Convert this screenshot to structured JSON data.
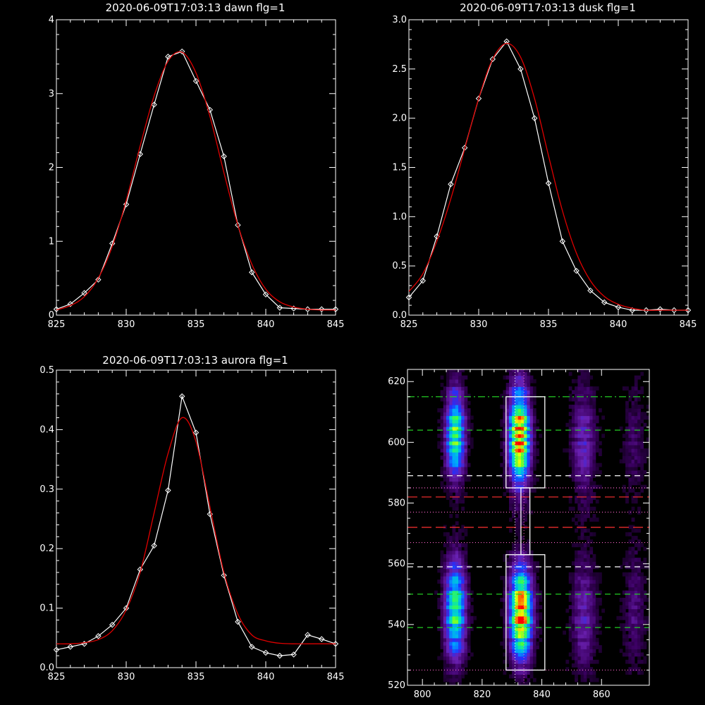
{
  "chart_data": [
    {
      "id": "dawn",
      "type": "line",
      "title": "2020-06-09T17:03:13 dawn flg=1",
      "xlim": [
        825,
        845
      ],
      "ylim": [
        0,
        4
      ],
      "xticks": [
        825,
        830,
        835,
        840,
        845
      ],
      "yticks": [
        0,
        1,
        2,
        3,
        4
      ],
      "series": [
        {
          "x": [
            825,
            826,
            827,
            828,
            829,
            830,
            831,
            832,
            833,
            834,
            835,
            836,
            837,
            838,
            839,
            840,
            841,
            842,
            843,
            844,
            845
          ],
          "y": [
            0.08,
            0.15,
            0.3,
            0.48,
            0.97,
            1.5,
            2.18,
            2.85,
            3.5,
            3.57,
            3.17,
            2.78,
            2.15,
            1.22,
            0.58,
            0.28,
            0.1,
            0.09,
            0.08,
            0.08,
            0.08
          ],
          "color": "#ffffff",
          "markers": true
        },
        {
          "x": [
            825,
            826,
            827,
            828,
            829,
            830,
            831,
            832,
            833,
            834,
            835,
            836,
            837,
            838,
            839,
            840,
            841,
            842,
            843,
            844,
            845
          ],
          "y": [
            0.07,
            0.13,
            0.25,
            0.5,
            0.93,
            1.55,
            2.29,
            2.97,
            3.44,
            3.56,
            3.28,
            2.69,
            1.93,
            1.22,
            0.69,
            0.35,
            0.18,
            0.11,
            0.08,
            0.07,
            0.07
          ],
          "color": "#e00000",
          "markers": false
        }
      ]
    },
    {
      "id": "dusk",
      "type": "line",
      "title": "2020-06-09T17:03:13 dusk flg=1",
      "xlim": [
        825,
        845
      ],
      "ylim": [
        0,
        3
      ],
      "xticks": [
        825,
        830,
        835,
        840,
        845
      ],
      "yticks": [
        0,
        0.5,
        1,
        1.5,
        2,
        2.5,
        3
      ],
      "ytick_labels": [
        "0.0",
        "0.5",
        "1.0",
        "1.5",
        "2.0",
        "2.5",
        "3.0"
      ],
      "series": [
        {
          "x": [
            825,
            826,
            827,
            828,
            829,
            830,
            831,
            832,
            833,
            834,
            835,
            836,
            837,
            838,
            839,
            840,
            841,
            842,
            843,
            844,
            845
          ],
          "y": [
            0.18,
            0.35,
            0.8,
            1.33,
            1.7,
            2.2,
            2.6,
            2.78,
            2.5,
            2.0,
            1.34,
            0.75,
            0.45,
            0.25,
            0.13,
            0.08,
            0.05,
            0.05,
            0.06,
            0.05,
            0.05
          ],
          "color": "#ffffff",
          "markers": true
        },
        {
          "x": [
            825,
            826,
            827,
            828,
            829,
            830,
            831,
            832,
            833,
            834,
            835,
            836,
            837,
            838,
            839,
            840,
            841,
            842,
            843,
            844,
            845
          ],
          "y": [
            0.24,
            0.42,
            0.75,
            1.18,
            1.69,
            2.2,
            2.6,
            2.76,
            2.62,
            2.2,
            1.62,
            1.06,
            0.63,
            0.35,
            0.19,
            0.11,
            0.07,
            0.05,
            0.05,
            0.05,
            0.05
          ],
          "color": "#e00000",
          "markers": false
        }
      ]
    },
    {
      "id": "aurora",
      "type": "line",
      "title": "2020-06-09T17:03:13 aurora flg=1",
      "xlim": [
        825,
        845
      ],
      "ylim": [
        0,
        0.5
      ],
      "xticks": [
        825,
        830,
        835,
        840,
        845
      ],
      "yticks": [
        0,
        0.1,
        0.2,
        0.3,
        0.4,
        0.5
      ],
      "ytick_labels": [
        "0.0",
        "0.1",
        "0.2",
        "0.3",
        "0.4",
        "0.5"
      ],
      "series": [
        {
          "x": [
            825,
            826,
            827,
            828,
            829,
            830,
            831,
            832,
            833,
            834,
            835,
            836,
            837,
            838,
            839,
            840,
            841,
            842,
            843,
            844,
            845
          ],
          "y": [
            0.03,
            0.035,
            0.04,
            0.053,
            0.072,
            0.1,
            0.165,
            0.205,
            0.298,
            0.456,
            0.395,
            0.258,
            0.155,
            0.077,
            0.035,
            0.025,
            0.02,
            0.022,
            0.055,
            0.048,
            0.04
          ],
          "color": "#ffffff",
          "markers": true
        },
        {
          "x": [
            825,
            826,
            827,
            828,
            829,
            830,
            831,
            832,
            833,
            834,
            835,
            836,
            837,
            838,
            839,
            840,
            841,
            842,
            843,
            844,
            845
          ],
          "y": [
            0.04,
            0.04,
            0.042,
            0.047,
            0.062,
            0.097,
            0.16,
            0.26,
            0.36,
            0.42,
            0.38,
            0.27,
            0.16,
            0.09,
            0.055,
            0.045,
            0.041,
            0.04,
            0.04,
            0.04,
            0.04
          ],
          "color": "#e00000",
          "markers": false
        }
      ]
    },
    {
      "id": "image",
      "type": "heatmap",
      "xlim": [
        795,
        876
      ],
      "ylim": [
        520,
        624
      ],
      "xticks": [
        800,
        820,
        840,
        860
      ],
      "yticks": [
        520,
        540,
        560,
        580,
        600,
        620
      ],
      "colormap": [
        "#000000",
        "#3a0060",
        "#6a20b0",
        "#2030ff",
        "#00a0ff",
        "#00e0c0",
        "#40ff40",
        "#f0ff00",
        "#ff8000",
        "#ff0000"
      ],
      "blobs": [
        {
          "x": 811,
          "y": 603,
          "sx": 2.2,
          "sy": 9,
          "amp": 0.62
        },
        {
          "x": 811,
          "y": 545,
          "sx": 2.4,
          "sy": 10,
          "amp": 0.6
        },
        {
          "x": 832.5,
          "y": 602,
          "sx": 2.4,
          "sy": 10,
          "amp": 0.88
        },
        {
          "x": 833,
          "y": 544,
          "sx": 2.5,
          "sy": 9,
          "amp": 0.92
        },
        {
          "x": 854,
          "y": 600,
          "sx": 2.8,
          "sy": 12,
          "amp": 0.22
        },
        {
          "x": 854,
          "y": 543,
          "sx": 2.8,
          "sy": 12,
          "amp": 0.2
        },
        {
          "x": 871,
          "y": 545,
          "sx": 2.5,
          "sy": 12,
          "amp": 0.13
        },
        {
          "x": 871,
          "y": 601,
          "sx": 2.5,
          "sy": 12,
          "amp": 0.1
        }
      ],
      "boxes": [
        {
          "x0": 828,
          "x1": 841,
          "y0": 585,
          "y1": 615
        },
        {
          "x0": 828,
          "x1": 841,
          "y0": 525,
          "y1": 563
        },
        {
          "x0": 833,
          "x1": 836,
          "y0": 563,
          "y1": 585
        }
      ],
      "hlines": [
        {
          "y": 615,
          "color": "#22cc22",
          "style": "dashdot"
        },
        {
          "y": 604,
          "color": "#22cc22",
          "style": "dash"
        },
        {
          "y": 589,
          "color": "#ffffff",
          "style": "dash"
        },
        {
          "y": 585,
          "color": "#ff66cc",
          "style": "dot"
        },
        {
          "y": 582,
          "color": "#ff3030",
          "style": "longdash"
        },
        {
          "y": 577,
          "color": "#ff66cc",
          "style": "dot"
        },
        {
          "y": 572,
          "color": "#ff3030",
          "style": "longdash"
        },
        {
          "y": 567,
          "color": "#ff66cc",
          "style": "dot"
        },
        {
          "y": 559,
          "color": "#ffffff",
          "style": "dash"
        },
        {
          "y": 550,
          "color": "#22cc22",
          "style": "dash"
        },
        {
          "y": 539,
          "color": "#22cc22",
          "style": "dash"
        },
        {
          "y": 525,
          "color": "#ff66cc",
          "style": "dot"
        }
      ],
      "vlines": [
        {
          "x": 831,
          "color": "#ffffff",
          "style": "dot"
        },
        {
          "x": 834,
          "color": "#ff66cc",
          "style": "dot"
        }
      ]
    }
  ]
}
